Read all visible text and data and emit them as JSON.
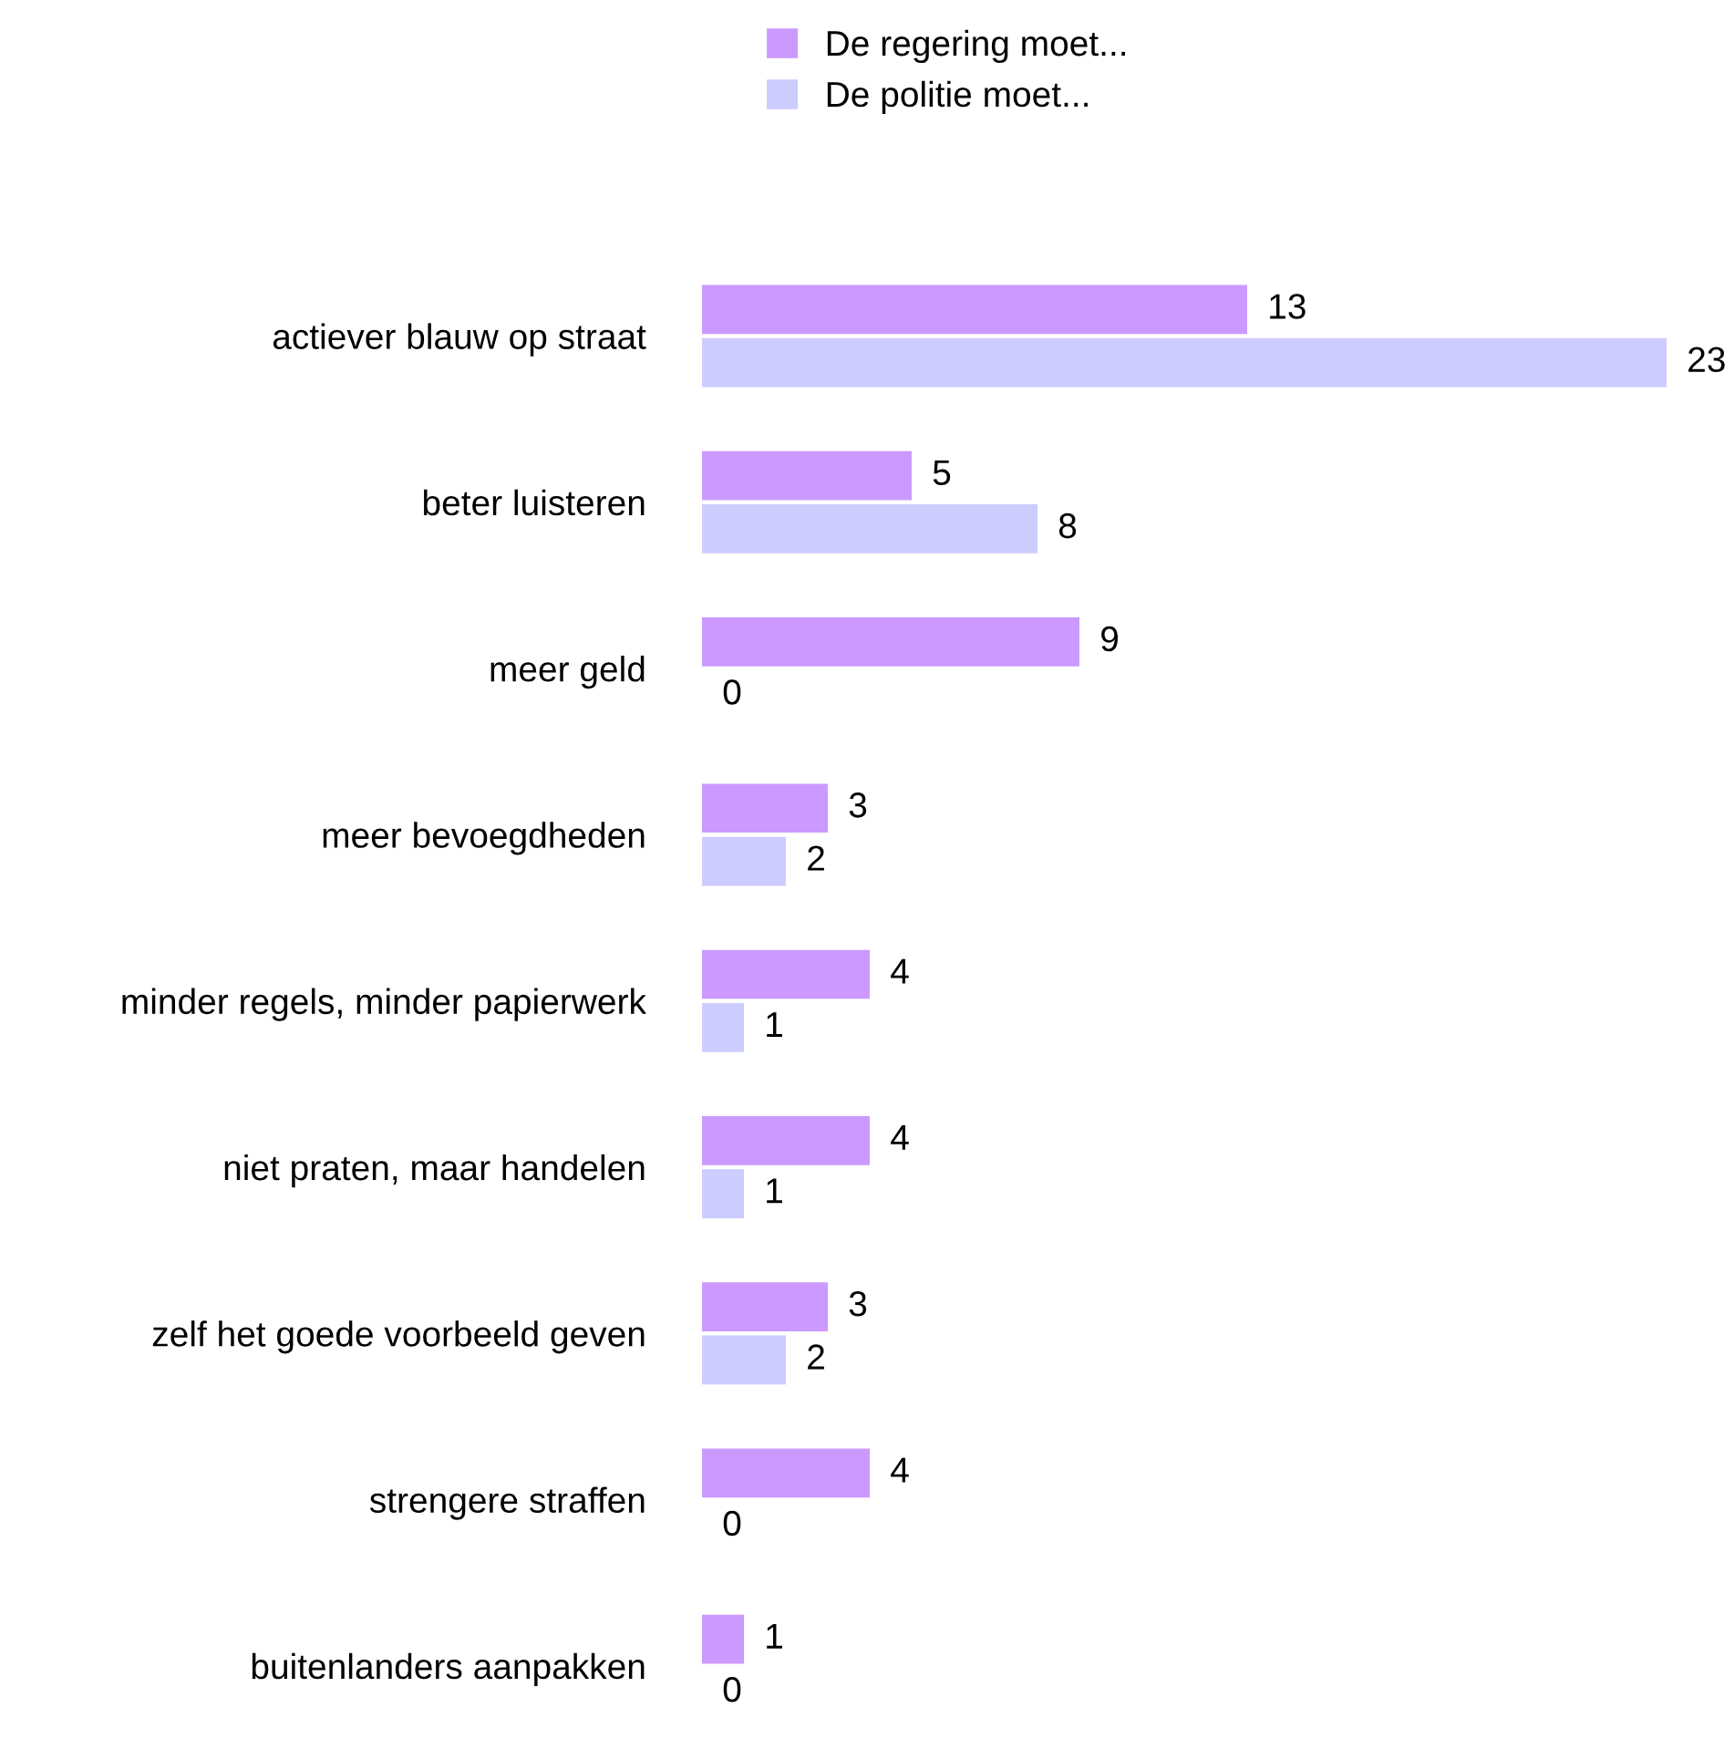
{
  "chart_data": {
    "type": "bar",
    "orientation": "horizontal",
    "categories": [
      "actiever blauw op straat",
      "beter luisteren",
      "meer geld",
      "meer bevoegdheden",
      "minder regels, minder papierwerk",
      "niet praten, maar handelen",
      "zelf het goede voorbeeld geven",
      "strengere straffen",
      "buitenlanders aanpakken"
    ],
    "series": [
      {
        "name": "De regering moet...",
        "color": "#cc99ff",
        "values": [
          13,
          5,
          9,
          3,
          4,
          4,
          3,
          4,
          1
        ]
      },
      {
        "name": "De politie moet...",
        "color": "#ccccff",
        "values": [
          23,
          8,
          0,
          2,
          1,
          1,
          2,
          0,
          0
        ]
      }
    ],
    "data_labels": true,
    "legend": "top",
    "grid": false,
    "tick_labels": "y"
  }
}
